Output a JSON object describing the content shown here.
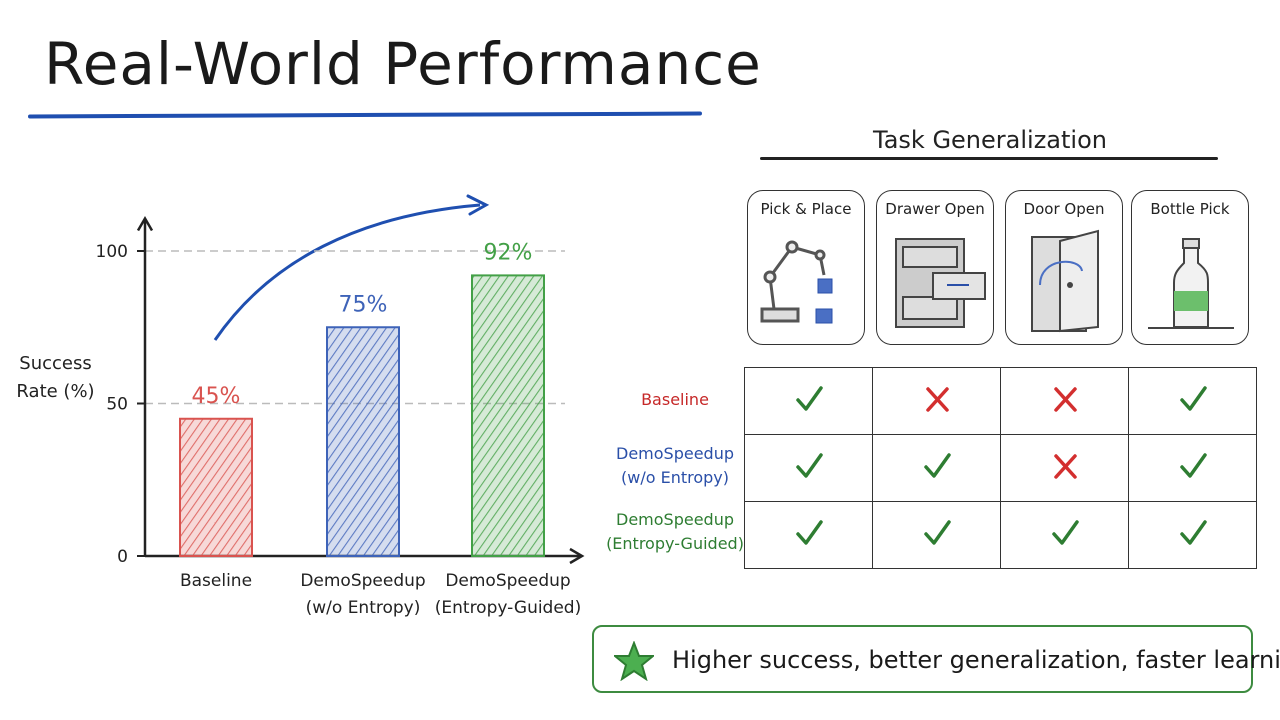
{
  "title": "Real-World Performance",
  "chart_data": {
    "type": "bar",
    "y_label": "Success Rate (%)",
    "categories": [
      "Baseline",
      "DemoSpeedup (w/o Entropy)",
      "DemoSpeedup (Entropy-Guided)"
    ],
    "values": [
      45,
      75,
      92
    ],
    "value_labels": [
      "45%",
      "75%",
      "92%"
    ],
    "colors": [
      "#d9534f",
      "#3e63b8",
      "#43a047"
    ],
    "ylim": [
      0,
      110
    ],
    "yticks": [
      0,
      50,
      100
    ],
    "grid": true
  },
  "table": {
    "title": "Task Generalization",
    "columns": [
      "Pick & Place",
      "Drawer Open",
      "Door Open",
      "Bottle Pick"
    ],
    "rows": [
      {
        "label": "Baseline",
        "color": "#c62828",
        "cells": [
          true,
          false,
          false,
          true
        ]
      },
      {
        "label": "DemoSpeedup (w/o Entropy)",
        "color": "#2a4fa8",
        "cells": [
          true,
          true,
          false,
          true
        ]
      },
      {
        "label": "DemoSpeedup (Entropy-Guided)",
        "color": "#2e7d32",
        "cells": [
          true,
          true,
          true,
          true
        ]
      }
    ]
  },
  "note": "Higher success, better generalization, faster learning."
}
